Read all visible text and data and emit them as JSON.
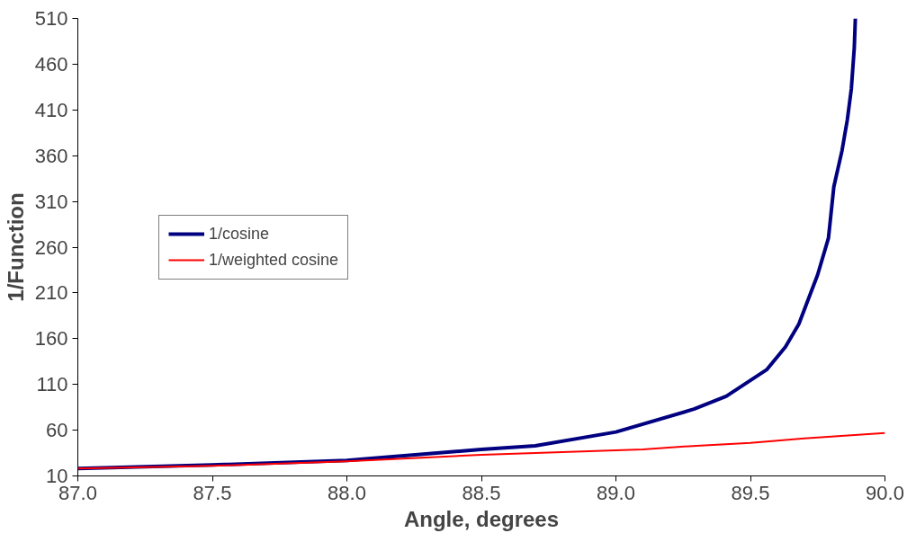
{
  "chart_data": {
    "type": "line",
    "xlabel": "Angle, degrees",
    "ylabel": "1/Function",
    "xlim": [
      87.0,
      90.0
    ],
    "xticks": [
      {
        "value": 87,
        "label": "87.0"
      },
      {
        "value": 87.5,
        "label": "87.5"
      },
      {
        "value": 88,
        "label": "88.0"
      },
      {
        "value": 88.5,
        "label": "88.5"
      },
      {
        "value": 89,
        "label": "89.0"
      },
      {
        "value": 89.5,
        "label": "89.5"
      },
      {
        "value": 90,
        "label": "90.0"
      }
    ],
    "ylim": [
      10,
      510
    ],
    "yticks": [
      10,
      60,
      110,
      160,
      210,
      260,
      310,
      360,
      410,
      460,
      510
    ],
    "grid": false,
    "legend": "left",
    "marker": "none",
    "line_style": "solid",
    "series": [
      {
        "name": "1/cosine",
        "color": "#000080",
        "x": [
          87.0,
          87.5,
          88.0,
          88.5,
          88.7,
          89.0,
          89.29,
          89.41,
          89.56,
          89.63,
          89.68,
          89.75,
          89.79,
          89.81,
          89.84,
          89.86,
          89.875,
          89.886,
          89.89
        ],
        "values": [
          18,
          22,
          27,
          39,
          43,
          58,
          83,
          97,
          126,
          151,
          176,
          230,
          270,
          326,
          365,
          399,
          433,
          478,
          510
        ]
      },
      {
        "name": "1/weighted cosine",
        "color": "#ff0000",
        "x": [
          87.0,
          87.5,
          88.0,
          88.5,
          89.0,
          89.1,
          89.3,
          89.5,
          89.7,
          90.0
        ],
        "values": [
          18,
          21,
          26,
          33,
          38,
          39,
          43,
          46,
          51,
          57
        ]
      }
    ]
  }
}
